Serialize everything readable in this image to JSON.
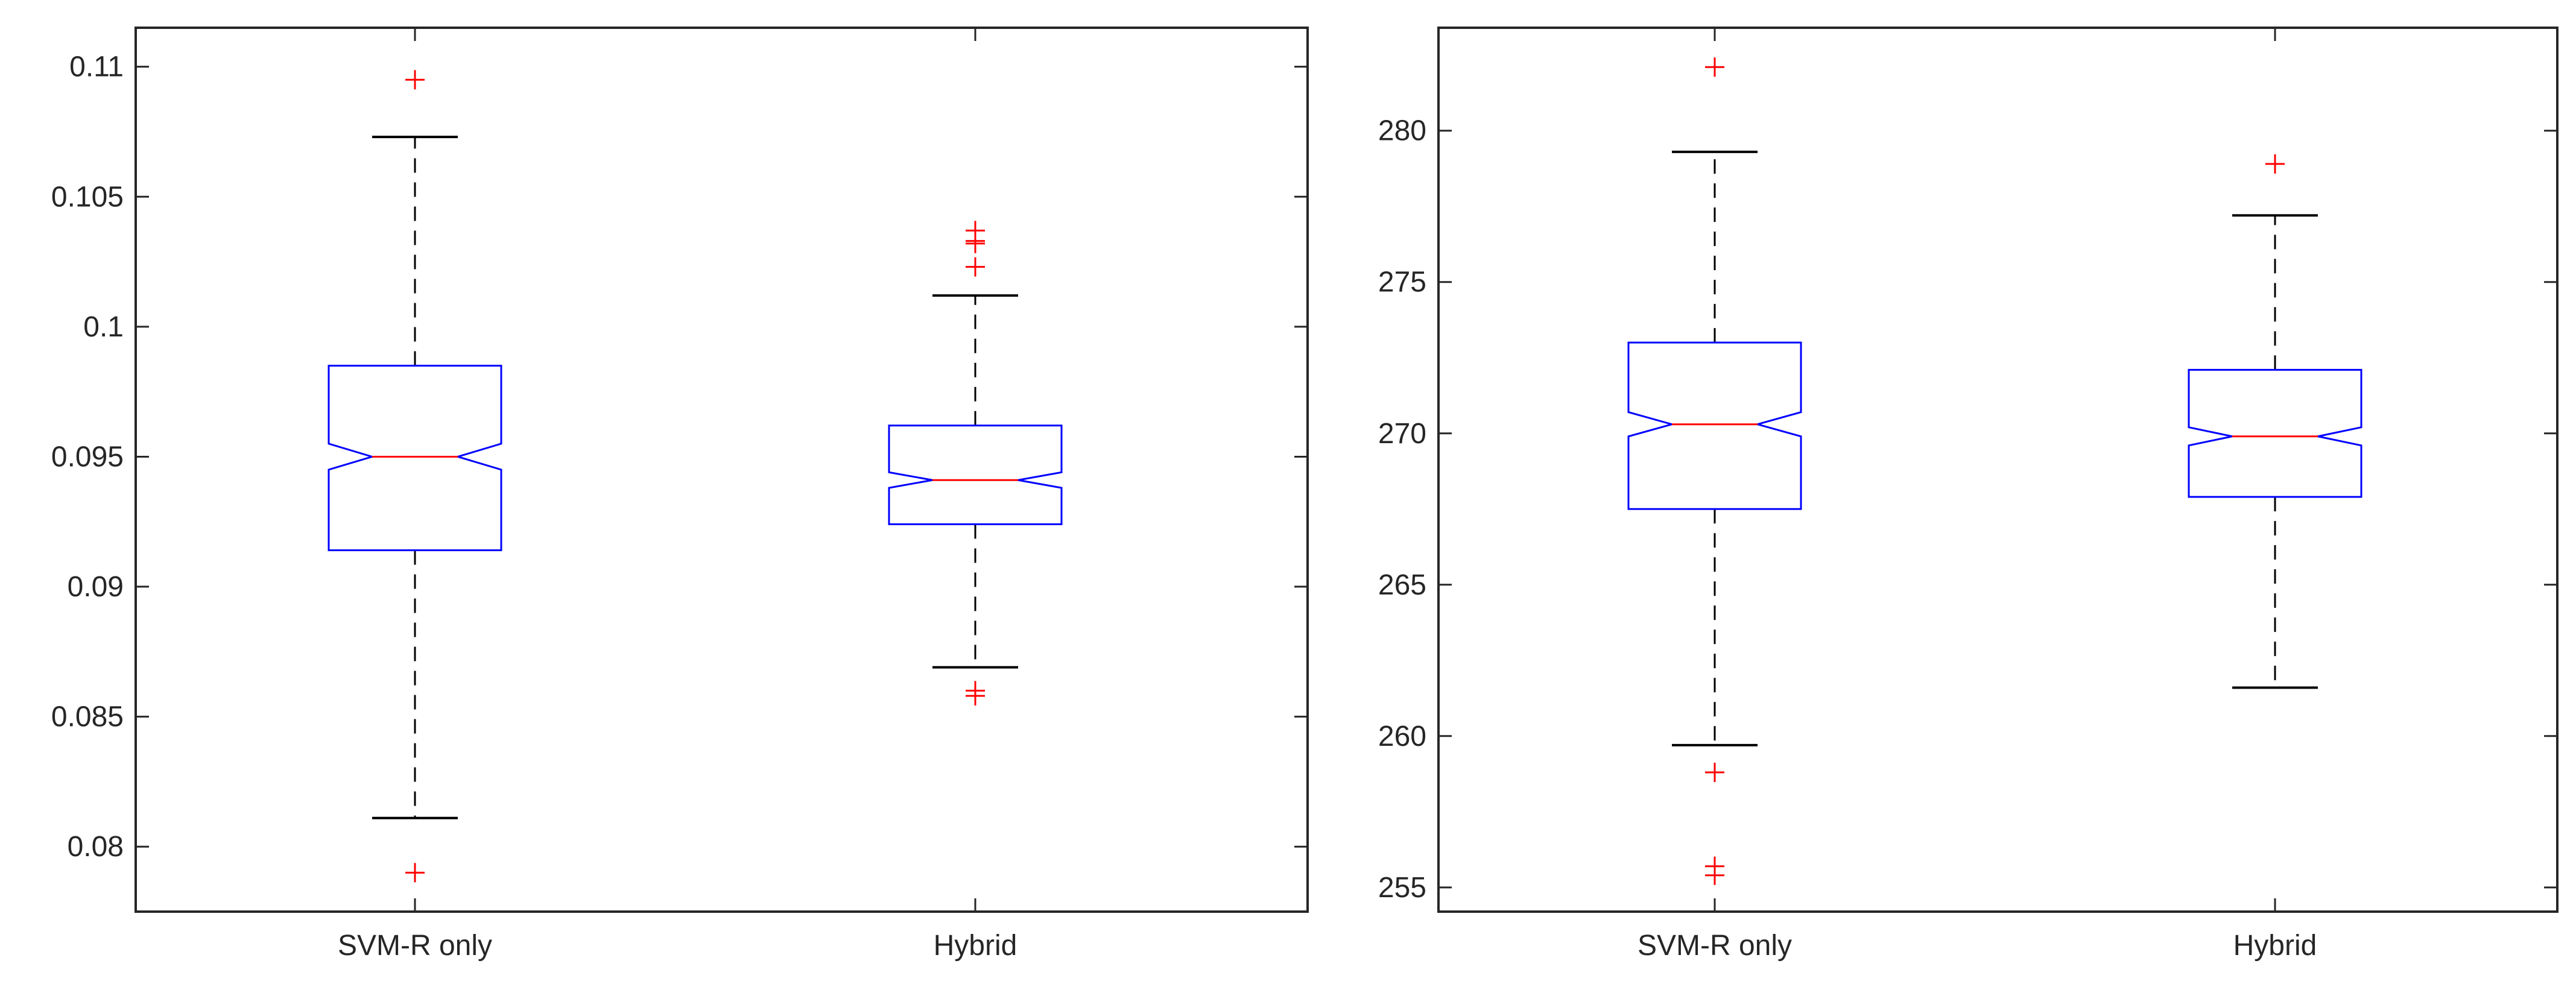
{
  "chart_data": [
    {
      "type": "boxplot",
      "title": "",
      "xlabel": "",
      "ylabel": "",
      "categories": [
        "SVM-R only",
        "Hybrid"
      ],
      "ylim": [
        0.0775,
        0.1115
      ],
      "yticks": [
        0.08,
        0.085,
        0.09,
        0.095,
        0.1,
        0.105,
        0.11
      ],
      "ytick_labels": [
        "0.08",
        "0.085",
        "0.09",
        "0.095",
        "0.1",
        "0.105",
        "0.11"
      ],
      "notched": true,
      "grid": false,
      "boxes": [
        {
          "category": "SVM-R only",
          "whisker_low": 0.0811,
          "q1": 0.0914,
          "median": 0.095,
          "q3": 0.0985,
          "whisker_high": 0.1073,
          "notch_low": 0.0945,
          "notch_high": 0.0955,
          "outliers": [
            0.1095,
            0.079
          ]
        },
        {
          "category": "Hybrid",
          "whisker_low": 0.0869,
          "q1": 0.0924,
          "median": 0.0941,
          "q3": 0.0962,
          "whisker_high": 0.1012,
          "notch_low": 0.0938,
          "notch_high": 0.0944,
          "outliers": [
            0.1037,
            0.1033,
            0.1032,
            0.1023,
            0.086,
            0.0858
          ]
        }
      ]
    },
    {
      "type": "boxplot",
      "title": "",
      "xlabel": "",
      "ylabel": "",
      "categories": [
        "SVM-R only",
        "Hybrid"
      ],
      "ylim": [
        254.2,
        283.4
      ],
      "yticks": [
        255,
        260,
        265,
        270,
        275,
        280
      ],
      "ytick_labels": [
        "255",
        "260",
        "265",
        "270",
        "275",
        "280"
      ],
      "notched": true,
      "grid": false,
      "boxes": [
        {
          "category": "SVM-R only",
          "whisker_low": 259.7,
          "q1": 267.5,
          "median": 270.3,
          "q3": 273.0,
          "whisker_high": 279.3,
          "notch_low": 269.9,
          "notch_high": 270.7,
          "outliers": [
            282.1,
            258.8,
            255.7,
            255.4
          ]
        },
        {
          "category": "Hybrid",
          "whisker_low": 261.6,
          "q1": 267.9,
          "median": 269.9,
          "q3": 272.1,
          "whisker_high": 277.2,
          "notch_low": 269.6,
          "notch_high": 270.2,
          "outliers": [
            278.9
          ]
        }
      ]
    }
  ],
  "style": {
    "box_color": "#0000ff",
    "median_color": "#ff0000",
    "outlier_color": "#ff0000",
    "whisker_color": "#000000",
    "axes_color": "#262626"
  }
}
